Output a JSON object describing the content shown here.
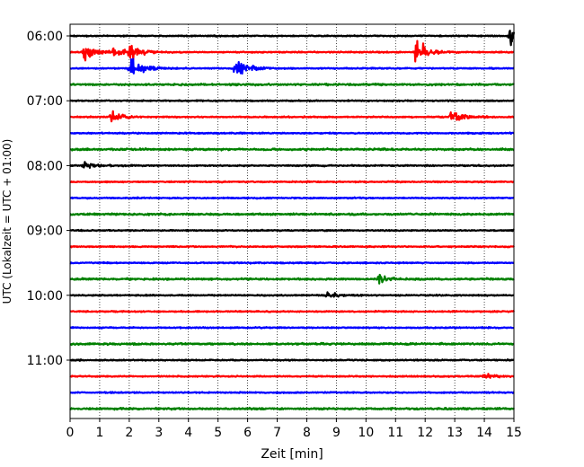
{
  "chart_data": {
    "type": "line",
    "title": "",
    "xlabel": "Zeit  [min]",
    "ylabel": "UTC (Lokalzeit = UTC + 01:00)",
    "xlim": [
      0,
      15
    ],
    "x_ticks": [
      "0",
      "1",
      "2",
      "3",
      "4",
      "5",
      "6",
      "7",
      "8",
      "9",
      "10",
      "11",
      "12",
      "13",
      "14",
      "15"
    ],
    "y_ticks": [
      "06:00",
      "07:00",
      "08:00",
      "09:00",
      "10:00",
      "11:00"
    ],
    "grid": "vertical dotted lines at each minute",
    "trace_interval_min": 15,
    "trace_colors": [
      "#000000",
      "#ff0000",
      "#0000ff",
      "#008000"
    ],
    "traces": [
      {
        "start": "06:00",
        "color": "#000000",
        "events": [
          {
            "t": 14.9,
            "amp": 1.0
          }
        ]
      },
      {
        "start": "06:15",
        "color": "#ff0000",
        "events": [
          {
            "t": 0.5,
            "amp": 1.2
          },
          {
            "t": 1.5,
            "amp": 0.5
          },
          {
            "t": 1.95,
            "amp": 1.6
          },
          {
            "t": 11.7,
            "amp": 1.6
          }
        ]
      },
      {
        "start": "06:30",
        "color": "#0000ff",
        "events": [
          {
            "t": 2.05,
            "amp": 1.8
          },
          {
            "t": 5.6,
            "amp": 1.5
          }
        ]
      },
      {
        "start": "06:45",
        "color": "#008000",
        "events": []
      },
      {
        "start": "07:00",
        "color": "#000000",
        "events": []
      },
      {
        "start": "07:15",
        "color": "#ff0000",
        "events": [
          {
            "t": 1.4,
            "amp": 0.9
          },
          {
            "t": 12.9,
            "amp": 0.9
          }
        ]
      },
      {
        "start": "07:30",
        "color": "#0000ff",
        "events": []
      },
      {
        "start": "07:45",
        "color": "#008000",
        "events": []
      },
      {
        "start": "08:00",
        "color": "#000000",
        "events": [
          {
            "t": 0.5,
            "amp": 0.4
          }
        ]
      },
      {
        "start": "08:15",
        "color": "#ff0000",
        "events": []
      },
      {
        "start": "08:30",
        "color": "#0000ff",
        "events": []
      },
      {
        "start": "08:45",
        "color": "#008000",
        "events": []
      },
      {
        "start": "09:00",
        "color": "#000000",
        "events": []
      },
      {
        "start": "09:15",
        "color": "#ff0000",
        "events": []
      },
      {
        "start": "09:30",
        "color": "#0000ff",
        "events": []
      },
      {
        "start": "09:45",
        "color": "#008000",
        "events": [
          {
            "t": 10.4,
            "amp": 0.5
          }
        ]
      },
      {
        "start": "10:00",
        "color": "#000000",
        "events": [
          {
            "t": 8.7,
            "amp": 0.4
          }
        ]
      },
      {
        "start": "10:15",
        "color": "#ff0000",
        "events": []
      },
      {
        "start": "10:30",
        "color": "#0000ff",
        "events": []
      },
      {
        "start": "10:45",
        "color": "#008000",
        "events": []
      },
      {
        "start": "11:00",
        "color": "#000000",
        "events": []
      },
      {
        "start": "11:15",
        "color": "#ff0000",
        "events": [
          {
            "t": 14.0,
            "amp": 0.4
          }
        ]
      },
      {
        "start": "11:30",
        "color": "#0000ff",
        "events": []
      },
      {
        "start": "11:45",
        "color": "#008000",
        "events": []
      }
    ]
  }
}
